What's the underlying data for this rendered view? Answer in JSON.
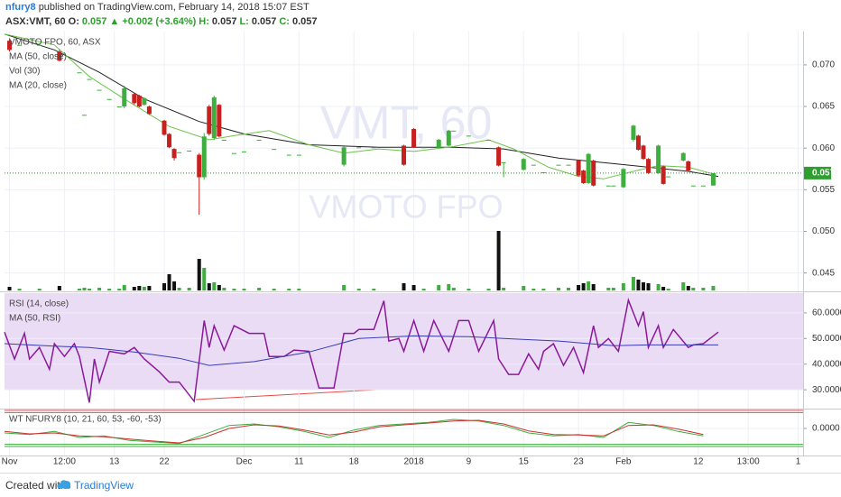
{
  "header": {
    "author": "nfury8",
    "published": "published on TradingView.com, February 14, 2018 15:07 EST",
    "symbol": "ASX:VMT, 60",
    "quote": [
      "O:",
      "0.057",
      "▲ +0.002 (+3.64%)",
      "H:",
      "0.057",
      "L:",
      "0.057",
      "C:",
      "0.057"
    ]
  },
  "footer": {
    "created": "Created with",
    "brand": "TradingView"
  },
  "chart_data": [
    {
      "type": "candlestick",
      "name": "VMOTO FPO, 60, ASX",
      "watermark": [
        "VMT, 60",
        "VMOTO FPO"
      ],
      "up_color": "#3eae3e",
      "down_color": "#c8201e",
      "xlim": [
        0,
        160
      ],
      "xticks": [
        {
          "value": 1,
          "label": "Nov"
        },
        {
          "value": 12,
          "label": "12:00"
        },
        {
          "value": 22,
          "label": "13"
        },
        {
          "value": 32,
          "label": "22"
        },
        {
          "value": 48,
          "label": "Dec"
        },
        {
          "value": 59,
          "label": "11"
        },
        {
          "value": 70,
          "label": "18"
        },
        {
          "value": 82,
          "label": "2018"
        },
        {
          "value": 93,
          "label": "9"
        },
        {
          "value": 104,
          "label": "15"
        },
        {
          "value": 115,
          "label": "23"
        },
        {
          "value": 124,
          "label": "Feb"
        },
        {
          "value": 139,
          "label": "12"
        },
        {
          "value": 149,
          "label": "13:00"
        },
        {
          "value": 159,
          "label": "1"
        }
      ],
      "ylim": [
        0.0429,
        0.074
      ],
      "yticks": [
        0.045,
        {
          "value": 0.05,
          "label": "0.050"
        },
        0.055,
        {
          "value": 0.06,
          "label": "0.060"
        },
        0.065,
        {
          "value": 0.07,
          "label": "0.070"
        }
      ],
      "last": {
        "value": 0.057,
        "label": "0.057",
        "color": "#2e9e2e"
      },
      "x": [
        1,
        3,
        7,
        11,
        15,
        16,
        17,
        19,
        21,
        23,
        24,
        26,
        27,
        28,
        29,
        32,
        33,
        34,
        35,
        37,
        39,
        40,
        41,
        42,
        43,
        44,
        46,
        48,
        51,
        54,
        57,
        59,
        68,
        71,
        74,
        80,
        82,
        84,
        87,
        89,
        90,
        93,
        97,
        99,
        100,
        104,
        106,
        108,
        111,
        113,
        115,
        116,
        117,
        118,
        121,
        122,
        124,
        126,
        127,
        128,
        129,
        131,
        132,
        133,
        136,
        137,
        138,
        140,
        142
      ],
      "open": [
        0.0729,
        0.0724,
        0.0724,
        0.0716,
        0.0691,
        0.064,
        0.0683,
        0.067,
        0.0659,
        0.065,
        0.065,
        0.0665,
        0.0663,
        0.0652,
        0.065,
        0.0633,
        0.0617,
        0.0599,
        0.0595,
        0.0597,
        0.0592,
        0.0565,
        0.065,
        0.0612,
        0.0652,
        0.061,
        0.0594,
        0.0596,
        0.061,
        0.0599,
        0.0592,
        0.0592,
        0.058,
        0.0601,
        0.0601,
        0.0603,
        0.0623,
        0.0601,
        0.0601,
        0.0603,
        0.0621,
        0.0615,
        0.061,
        0.0601,
        0.0583,
        0.0574,
        0.058,
        0.0571,
        0.058,
        0.058,
        0.0585,
        0.0573,
        0.0558,
        0.0585,
        0.0555,
        0.0555,
        0.0553,
        0.061,
        0.0615,
        0.0603,
        0.0587,
        0.057,
        0.0578,
        0.0566,
        0.0585,
        0.0584,
        0.0555,
        0.0555,
        0.0555
      ],
      "high": [
        0.0731,
        0.0724,
        0.0724,
        0.0718,
        0.0691,
        0.064,
        0.0683,
        0.067,
        0.0659,
        0.065,
        0.0675,
        0.0666,
        0.0664,
        0.0661,
        0.0651,
        0.0634,
        0.0618,
        0.06,
        0.0595,
        0.0597,
        0.0594,
        0.0618,
        0.0652,
        0.0663,
        0.0653,
        0.061,
        0.0594,
        0.0596,
        0.061,
        0.0599,
        0.0592,
        0.0592,
        0.0602,
        0.0601,
        0.0601,
        0.0604,
        0.0624,
        0.0601,
        0.0611,
        0.0622,
        0.0621,
        0.0615,
        0.061,
        0.0602,
        0.0583,
        0.0588,
        0.058,
        0.0571,
        0.058,
        0.058,
        0.0586,
        0.0574,
        0.0594,
        0.0586,
        0.0555,
        0.0555,
        0.0576,
        0.0628,
        0.0616,
        0.0604,
        0.0588,
        0.0604,
        0.0579,
        0.0566,
        0.0595,
        0.0585,
        0.0555,
        0.0555,
        0.057
      ],
      "low": [
        0.0716,
        0.0724,
        0.0724,
        0.0704,
        0.0691,
        0.064,
        0.0683,
        0.067,
        0.0659,
        0.065,
        0.0648,
        0.0652,
        0.0649,
        0.0651,
        0.064,
        0.0615,
        0.06,
        0.0585,
        0.0595,
        0.0597,
        0.052,
        0.0562,
        0.0615,
        0.061,
        0.0613,
        0.061,
        0.0594,
        0.0596,
        0.061,
        0.0599,
        0.0592,
        0.0592,
        0.0578,
        0.0601,
        0.0601,
        0.0579,
        0.06,
        0.0601,
        0.06,
        0.0602,
        0.0621,
        0.0615,
        0.061,
        0.0578,
        0.0565,
        0.0573,
        0.058,
        0.0571,
        0.058,
        0.058,
        0.0566,
        0.0557,
        0.0557,
        0.0554,
        0.0555,
        0.0555,
        0.0552,
        0.0608,
        0.0597,
        0.0586,
        0.0569,
        0.0569,
        0.0556,
        0.0566,
        0.0584,
        0.0572,
        0.0555,
        0.0555,
        0.0555
      ],
      "close": [
        0.0718,
        0.0724,
        0.0724,
        0.0705,
        0.0691,
        0.064,
        0.0683,
        0.067,
        0.0659,
        0.065,
        0.0672,
        0.0654,
        0.065,
        0.066,
        0.0641,
        0.0616,
        0.0601,
        0.0588,
        0.0595,
        0.0597,
        0.0565,
        0.0614,
        0.0617,
        0.0661,
        0.0614,
        0.061,
        0.0594,
        0.0596,
        0.061,
        0.0599,
        0.0592,
        0.0592,
        0.0601,
        0.0601,
        0.0601,
        0.058,
        0.0601,
        0.0601,
        0.061,
        0.0621,
        0.0621,
        0.0615,
        0.061,
        0.0579,
        0.0583,
        0.0587,
        0.058,
        0.0571,
        0.058,
        0.058,
        0.0567,
        0.0558,
        0.0593,
        0.0555,
        0.0555,
        0.0555,
        0.0575,
        0.0627,
        0.0598,
        0.0587,
        0.057,
        0.0603,
        0.0557,
        0.0566,
        0.0594,
        0.0573,
        0.0555,
        0.0555,
        0.057
      ],
      "volume_name": "Vol (30)",
      "volume_lim": [
        0,
        70
      ],
      "volume_up_color": "#3eae3e",
      "volume_down_color": "#111111",
      "volume": [
        4,
        2,
        2,
        5,
        2,
        3,
        2,
        3,
        2,
        2,
        6,
        4,
        5,
        4,
        5,
        8,
        18,
        10,
        3,
        3,
        35,
        25,
        8,
        9,
        6,
        3,
        2,
        2,
        3,
        2,
        2,
        2,
        6,
        2,
        2,
        8,
        6,
        2,
        6,
        7,
        3,
        2,
        2,
        66,
        3,
        5,
        2,
        2,
        3,
        3,
        6,
        8,
        10,
        7,
        3,
        3,
        8,
        15,
        12,
        9,
        8,
        7,
        4,
        2,
        9,
        5,
        3,
        3,
        5
      ],
      "series": [
        {
          "name": "MA (50, close)",
          "color": "#222222",
          "x": [
            0,
            10,
            19,
            28,
            39,
            48,
            61,
            75,
            90,
            100,
            111,
            126,
            137,
            143
          ],
          "values": [
            0.0737,
            0.0718,
            0.0691,
            0.0659,
            0.0632,
            0.0617,
            0.0604,
            0.0601,
            0.0601,
            0.0599,
            0.0588,
            0.0579,
            0.0572,
            0.0566
          ]
        },
        {
          "name": "MA (20, close)",
          "color": "#6cc24a",
          "x": [
            0,
            10,
            17,
            24,
            33,
            41,
            46,
            53,
            61,
            68,
            75,
            82,
            90,
            97,
            102,
            109,
            115,
            120,
            126,
            131,
            137,
            142
          ],
          "values": [
            0.0737,
            0.0724,
            0.0686,
            0.0659,
            0.0626,
            0.061,
            0.0615,
            0.0621,
            0.0604,
            0.0594,
            0.0599,
            0.0596,
            0.0602,
            0.061,
            0.0599,
            0.0577,
            0.0566,
            0.0563,
            0.0572,
            0.0579,
            0.0577,
            0.0569
          ]
        }
      ]
    },
    {
      "type": "line",
      "band": [
        30,
        70
      ],
      "band_color": "#eadcf5",
      "ylim": [
        23,
        67.7
      ],
      "yticks": [
        {
          "value": 30,
          "label": "30.0000"
        },
        {
          "value": 40,
          "label": "40.0000"
        },
        {
          "value": 50,
          "label": "50.0000"
        },
        {
          "value": 60,
          "label": "60.0000"
        }
      ],
      "series": [
        {
          "name": "RSI (14, close)",
          "color": "#8b1a9b",
          "x": [
            0,
            2,
            4,
            5,
            7,
            9,
            10,
            12,
            14,
            15,
            17,
            18,
            19,
            21,
            24,
            26,
            28,
            31,
            33,
            35,
            38,
            40,
            41,
            42,
            44,
            46,
            49,
            52,
            53,
            56,
            58,
            61,
            63,
            66,
            68,
            70,
            71,
            74,
            76,
            77,
            79,
            80,
            82,
            84,
            86,
            89,
            91,
            93,
            95,
            98,
            99,
            101,
            103,
            105,
            107,
            108,
            110,
            112,
            114,
            116,
            118,
            119,
            121,
            123,
            125,
            127,
            128,
            129,
            131,
            132,
            134,
            137,
            138,
            140,
            143
          ],
          "values": [
            52.5,
            42,
            52,
            42,
            46.5,
            38,
            48,
            43,
            48,
            43,
            25,
            42,
            33,
            45,
            44,
            46.5,
            42,
            37,
            33,
            33,
            25.5,
            57,
            46.5,
            55,
            45.5,
            55,
            52,
            52,
            43,
            43,
            45.5,
            45,
            30.7,
            30.7,
            52,
            52,
            53.5,
            53.5,
            64.7,
            49,
            50,
            45,
            57,
            45,
            57,
            45,
            57,
            57,
            45,
            57,
            42,
            36,
            36,
            44,
            38,
            45,
            48,
            39.5,
            46.5,
            36.7,
            55,
            46.5,
            50,
            45,
            65,
            55,
            60.5,
            46.5,
            55,
            46.5,
            53.5,
            46.5,
            47.5,
            48,
            52.5
          ]
        },
        {
          "name": "MA (50, RSI)",
          "color": "#3a3ab8",
          "x": [
            0,
            10,
            17,
            26,
            35,
            41,
            50,
            61,
            71,
            82,
            93,
            100,
            111,
            122,
            129,
            143
          ],
          "values": [
            48,
            47,
            46.5,
            44.7,
            42.3,
            39.5,
            41,
            44.7,
            50,
            51,
            50.7,
            50,
            49,
            47.2,
            47.5,
            47.5
          ]
        }
      ]
    },
    {
      "type": "line",
      "title": "WT NFURY8 (10, 21, 60, 53, -60, -53)",
      "ylim": [
        -90,
        60
      ],
      "yticks": [
        {
          "value": 0,
          "label": "0.0000"
        }
      ],
      "levels": [
        {
          "value": 60,
          "color": "#e05050"
        },
        {
          "value": 53,
          "color": "#e05050"
        },
        {
          "value": -53,
          "color": "#3eae3e"
        },
        {
          "value": -60,
          "color": "#3eae3e"
        }
      ],
      "series": [
        {
          "color": "#3eae3e",
          "x": [
            0,
            5,
            10,
            15,
            20,
            25,
            30,
            35,
            40,
            45,
            50,
            55,
            60,
            65,
            70,
            75,
            80,
            85,
            90,
            95,
            100,
            105,
            110,
            115,
            120,
            125,
            130,
            135,
            140
          ],
          "values": [
            -15,
            -20,
            -10,
            -30,
            -25,
            -40,
            -45,
            -50,
            -20,
            10,
            15,
            5,
            -10,
            -30,
            -5,
            10,
            15,
            20,
            30,
            25,
            10,
            -15,
            -25,
            -20,
            -30,
            20,
            10,
            -10,
            -25
          ]
        },
        {
          "color": "#d03030",
          "x": [
            0,
            5,
            10,
            15,
            20,
            25,
            30,
            35,
            40,
            45,
            50,
            55,
            60,
            65,
            70,
            75,
            80,
            85,
            90,
            95,
            100,
            105,
            110,
            115,
            120,
            125,
            130,
            135,
            140
          ],
          "values": [
            -10,
            -18,
            -15,
            -25,
            -28,
            -35,
            -42,
            -48,
            -30,
            0,
            12,
            8,
            -5,
            -22,
            -12,
            5,
            12,
            18,
            25,
            27,
            15,
            -8,
            -20,
            -22,
            -25,
            10,
            12,
            -2,
            -20
          ]
        }
      ]
    }
  ]
}
